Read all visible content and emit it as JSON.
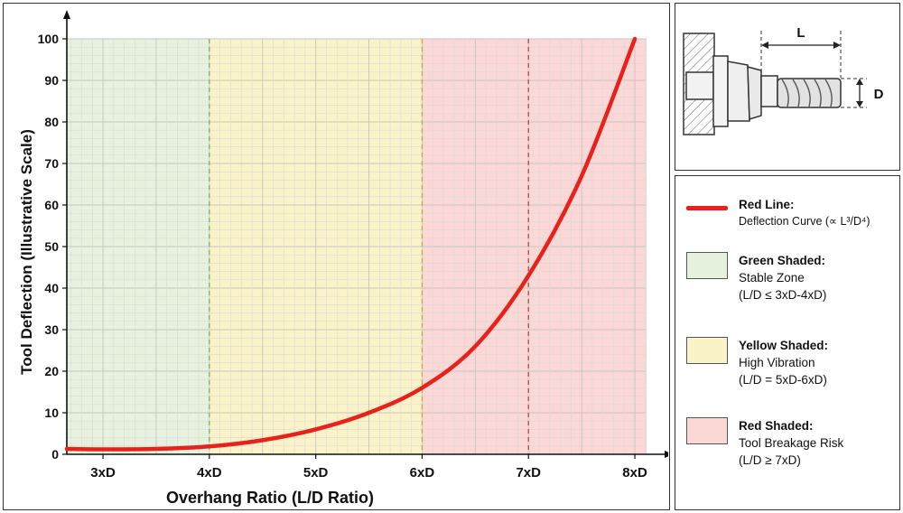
{
  "chart_data": {
    "type": "line",
    "title": "",
    "xlabel": "Overhang Ratio (L/D Ratio)",
    "ylabel": "Tool Deflection (Illustrative Scale)",
    "xlim": [
      2.66,
      8.11
    ],
    "ylim": [
      0,
      100
    ],
    "x_ticks": [
      {
        "value": 3,
        "label": "3xD"
      },
      {
        "value": 4,
        "label": "4xD"
      },
      {
        "value": 5,
        "label": "5xD"
      },
      {
        "value": 6,
        "label": "6xD"
      },
      {
        "value": 7,
        "label": "7xD"
      },
      {
        "value": 8,
        "label": "8xD"
      }
    ],
    "y_ticks": [
      0,
      10,
      20,
      30,
      40,
      50,
      60,
      70,
      80,
      90,
      100
    ],
    "grid": true,
    "zones": [
      {
        "name": "stable",
        "x_start": 2.66,
        "x_end": 4,
        "color": "#e6f2dd"
      },
      {
        "name": "high-vibration",
        "x_start": 4,
        "x_end": 6,
        "color": "#fbf3c8"
      },
      {
        "name": "breakage-risk",
        "x_start": 6,
        "x_end": 8.11,
        "color": "#fbd8d5"
      }
    ],
    "divider_lines": [
      {
        "x": 4,
        "color": "#7ab060"
      },
      {
        "x": 6,
        "color": "#c9a24a"
      },
      {
        "x": 7,
        "color": "#b04a4a"
      }
    ],
    "series": [
      {
        "color": "#e8221a",
        "points": [
          [
            2.66,
            1.3
          ],
          [
            3.0,
            1.2
          ],
          [
            3.5,
            1.3
          ],
          [
            4.0,
            1.9
          ],
          [
            4.5,
            3.4
          ],
          [
            5.0,
            6.0
          ],
          [
            5.5,
            10.0
          ],
          [
            6.0,
            16.0
          ],
          [
            6.5,
            26.0
          ],
          [
            7.0,
            43.0
          ],
          [
            7.5,
            67.0
          ],
          [
            8.0,
            100.0
          ]
        ]
      }
    ]
  },
  "diagram": {
    "length_label": "L",
    "diameter_label": "D"
  },
  "legend": {
    "items": [
      {
        "kind": "line",
        "color": "#e8221a",
        "title": "Red Line:",
        "lines": [],
        "sub": "Deflection Curve (∝ L³/D⁴)"
      },
      {
        "kind": "box",
        "color": "#e6f2dd",
        "title": "Green Shaded:",
        "lines": [
          "Stable Zone",
          "(L/D ≤ 3xD-4xD)"
        ]
      },
      {
        "kind": "box",
        "color": "#fbf3c8",
        "title": "Yellow Shaded:",
        "lines": [
          "High Vibration",
          "(L/D = 5xD-6xD)"
        ]
      },
      {
        "kind": "box",
        "color": "#fbd8d5",
        "title": "Red Shaded:",
        "lines": [
          "Tool Breakage Risk",
          "(L/D ≥ 7xD)"
        ]
      }
    ]
  }
}
